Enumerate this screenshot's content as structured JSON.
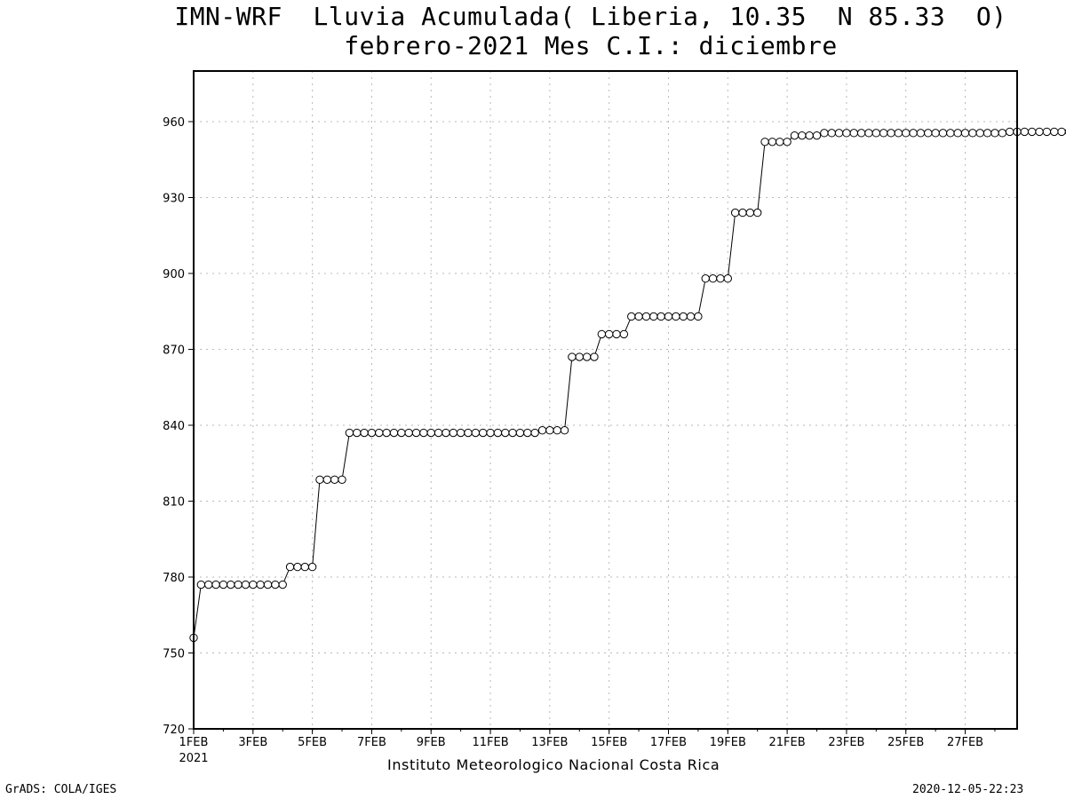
{
  "chart_data": {
    "type": "line",
    "title": "IMN-WRF  Lluvia Acumulada( Liberia, 10.35  N 85.33  O)",
    "subtitle": "febrero-2021 Mes C.I.: diciembre",
    "xlabel": "Instituto Meteorologico Nacional Costa Rica",
    "ylabel": "",
    "xlim": [
      1,
      28.75
    ],
    "ylim": [
      720,
      980
    ],
    "y_ticks": [
      720,
      750,
      780,
      810,
      840,
      870,
      900,
      930,
      960
    ],
    "x_ticks": [
      {
        "value": 1,
        "label": "1FEB"
      },
      {
        "value": 3,
        "label": "3FEB"
      },
      {
        "value": 5,
        "label": "5FEB"
      },
      {
        "value": 7,
        "label": "7FEB"
      },
      {
        "value": 9,
        "label": "9FEB"
      },
      {
        "value": 11,
        "label": "11FEB"
      },
      {
        "value": 13,
        "label": "13FEB"
      },
      {
        "value": 15,
        "label": "15FEB"
      },
      {
        "value": 17,
        "label": "17FEB"
      },
      {
        "value": 19,
        "label": "19FEB"
      },
      {
        "value": 21,
        "label": "21FEB"
      },
      {
        "value": 23,
        "label": "23FEB"
      },
      {
        "value": 25,
        "label": "25FEB"
      },
      {
        "value": 27,
        "label": "27FEB"
      }
    ],
    "x_year_label": "2021",
    "grid": true,
    "marker": "open-circle",
    "line_color": "#000000",
    "x_step_days": 0.25,
    "x_start": 1,
    "series": [
      {
        "values": [
          756,
          777,
          777,
          777,
          777,
          777,
          777,
          777,
          777,
          777,
          777,
          777,
          777,
          784,
          784,
          784,
          784,
          818.5,
          818.5,
          818.5,
          818.5,
          837,
          837,
          837,
          837,
          837,
          837,
          837,
          837,
          837,
          837,
          837,
          837,
          837,
          837,
          837,
          837,
          837,
          837,
          837,
          837,
          837,
          837,
          837,
          837,
          837,
          837,
          838,
          838,
          838,
          838,
          867,
          867,
          867,
          867,
          876,
          876,
          876,
          876,
          883,
          883,
          883,
          883,
          883,
          883,
          883,
          883,
          883,
          883,
          898,
          898,
          898,
          898,
          924,
          924,
          924,
          924,
          952,
          952,
          952,
          952,
          954.5,
          954.5,
          954.5,
          954.5,
          955.5,
          955.5,
          955.5,
          955.5,
          955.5,
          955.5,
          955.5,
          955.5,
          955.5,
          955.5,
          955.5,
          955.5,
          955.5,
          955.5,
          955.5,
          955.5,
          955.5,
          955.5,
          955.5,
          955.5,
          955.5,
          955.5,
          955.5,
          955.5,
          955.5,
          956,
          956,
          956,
          956,
          956,
          956,
          956,
          956,
          956
        ]
      }
    ]
  },
  "footer": {
    "credit": "GrADS: COLA/IGES",
    "timestamp": "2020-12-05-22:23"
  }
}
